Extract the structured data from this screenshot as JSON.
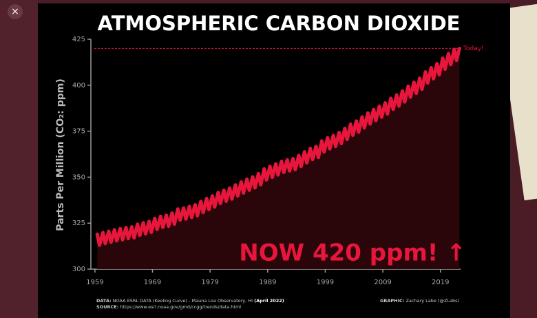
{
  "ui": {
    "close": "×"
  },
  "chart_data": {
    "type": "line",
    "title": "ATMOSPHERIC CARBON DIOXIDE",
    "y_label": "Parts Per Million (CO₂: ppm)",
    "annotation": "NOW 420 ppm! ↑",
    "reference_line": {
      "value": 420,
      "label": "Today!"
    },
    "footer": {
      "data_label": "DATA:",
      "data_text": "NOAA ESRL DATA (Keeling Curve) - Mauna Loa Observatory, HI",
      "data_date": "(April 2022)",
      "source_label": "SOURCE:",
      "source_text": "https://www.esrl.noaa.gov/gmd/ccgg/trends/data.html",
      "graphic_label": "GRAPHIC:",
      "graphic_text": "Zachary Labe (@ZLabs)"
    },
    "color": "#e8163c",
    "area_color": "#2a0509",
    "xlim": [
      1958.3,
      2022.5
    ],
    "xticks": [
      1959,
      1969,
      1979,
      1989,
      1999,
      2009,
      2019
    ],
    "ylim": [
      300,
      425
    ],
    "yticks": [
      300,
      325,
      350,
      375,
      400,
      425
    ],
    "x": [
      1959.4,
      1959.8,
      1960.4,
      1960.8,
      1961.4,
      1961.8,
      1962.4,
      1962.8,
      1963.4,
      1963.8,
      1964.4,
      1964.8,
      1965.4,
      1965.8,
      1966.4,
      1966.8,
      1967.4,
      1967.8,
      1968.4,
      1968.8,
      1969.4,
      1969.8,
      1970.4,
      1970.8,
      1971.4,
      1971.8,
      1972.4,
      1972.8,
      1973.4,
      1973.8,
      1974.4,
      1974.8,
      1975.4,
      1975.8,
      1976.4,
      1976.8,
      1977.4,
      1977.8,
      1978.4,
      1978.8,
      1979.4,
      1979.8,
      1980.4,
      1980.8,
      1981.4,
      1981.8,
      1982.4,
      1982.8,
      1983.4,
      1983.8,
      1984.4,
      1984.8,
      1985.4,
      1985.8,
      1986.4,
      1986.8,
      1987.4,
      1987.8,
      1988.4,
      1988.8,
      1989.4,
      1989.8,
      1990.4,
      1990.8,
      1991.4,
      1991.8,
      1992.4,
      1992.8,
      1993.4,
      1993.8,
      1994.4,
      1994.8,
      1995.4,
      1995.8,
      1996.4,
      1996.8,
      1997.4,
      1997.8,
      1998.4,
      1998.8,
      1999.4,
      1999.8,
      2000.4,
      2000.8,
      2001.4,
      2001.8,
      2002.4,
      2002.8,
      2003.4,
      2003.8,
      2004.4,
      2004.8,
      2005.4,
      2005.8,
      2006.4,
      2006.8,
      2007.4,
      2007.8,
      2008.4,
      2008.8,
      2009.4,
      2009.8,
      2010.4,
      2010.8,
      2011.4,
      2011.8,
      2012.4,
      2012.8,
      2013.4,
      2013.8,
      2014.4,
      2014.8,
      2015.4,
      2015.8,
      2016.4,
      2016.8,
      2017.4,
      2017.8,
      2018.4,
      2018.8,
      2019.4,
      2019.8,
      2020.4,
      2020.8,
      2021.4,
      2021.8,
      2022.3
    ],
    "values": [
      319.0,
      313.0,
      319.9,
      313.9,
      320.6,
      314.6,
      321.4,
      315.4,
      322.0,
      316.0,
      322.6,
      316.6,
      323.0,
      317.0,
      324.4,
      318.4,
      325.2,
      319.2,
      326.0,
      320.0,
      327.6,
      321.6,
      328.7,
      322.7,
      329.3,
      323.3,
      330.5,
      324.5,
      332.7,
      326.7,
      333.2,
      327.2,
      334.1,
      328.1,
      335.0,
      329.0,
      336.8,
      330.8,
      338.4,
      332.4,
      339.8,
      333.8,
      341.7,
      335.7,
      342.9,
      336.9,
      344.1,
      338.1,
      345.8,
      339.8,
      347.4,
      341.4,
      348.9,
      342.9,
      350.2,
      344.2,
      351.9,
      345.9,
      354.5,
      348.5,
      355.9,
      349.9,
      357.2,
      351.2,
      358.6,
      352.6,
      359.4,
      353.4,
      360.1,
      354.1,
      361.8,
      355.8,
      363.8,
      357.8,
      365.6,
      359.6,
      366.7,
      360.7,
      369.7,
      363.7,
      371.4,
      365.4,
      372.7,
      366.7,
      374.3,
      368.3,
      376.5,
      370.5,
      378.8,
      372.8,
      380.5,
      374.5,
      382.8,
      376.8,
      384.9,
      378.9,
      386.8,
      380.8,
      388.6,
      382.6,
      390.4,
      384.4,
      392.9,
      386.9,
      394.7,
      388.7,
      396.9,
      390.9,
      399.5,
      393.5,
      401.6,
      395.6,
      403.8,
      397.8,
      407.2,
      401.2,
      409.5,
      403.5,
      411.7,
      405.7,
      414.7,
      408.7,
      417.2,
      411.2,
      419.5,
      413.5,
      420.0
    ]
  }
}
